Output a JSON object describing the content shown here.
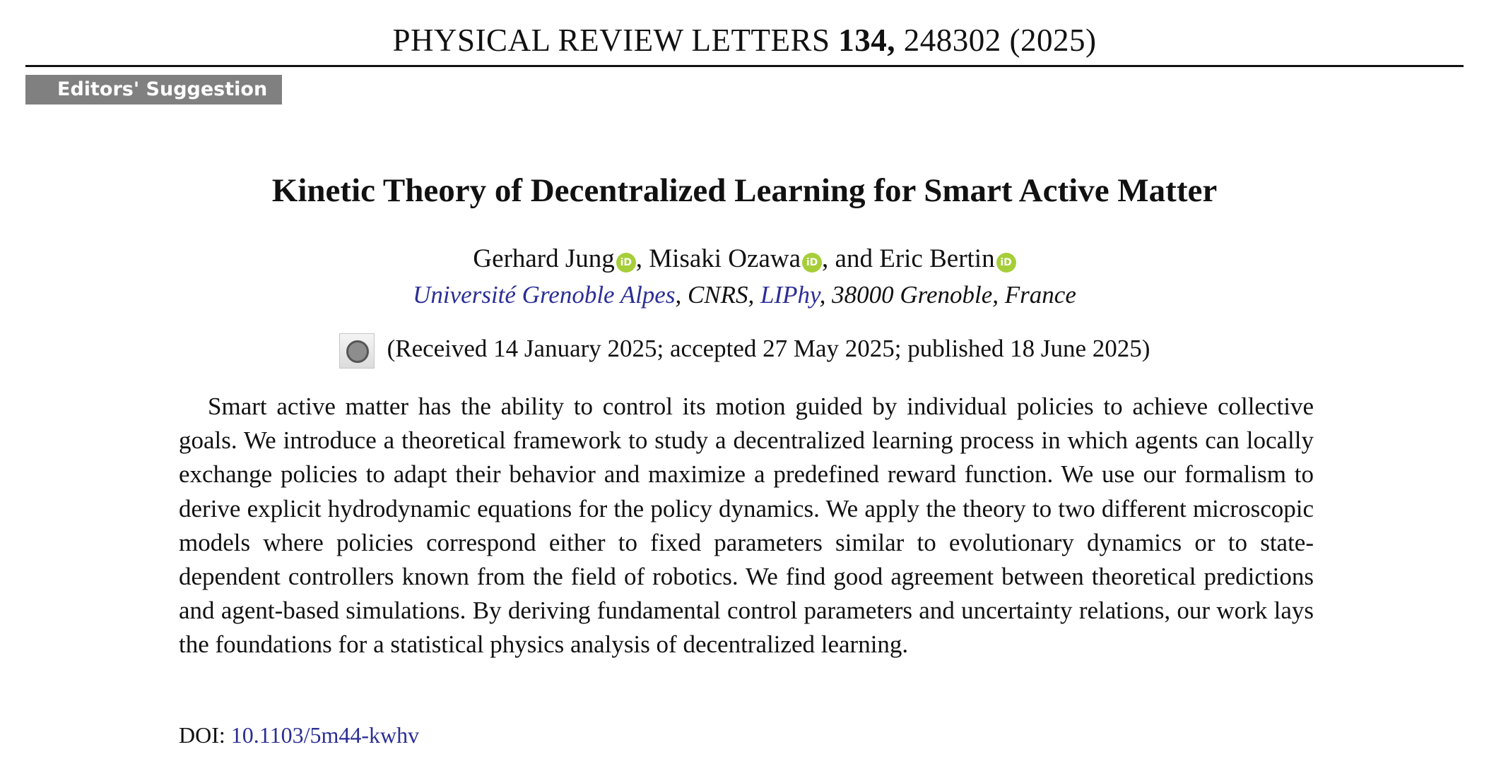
{
  "journal": {
    "name": "PHYSICAL REVIEW LETTERS",
    "volume": "134,",
    "article": "248302 (2025)"
  },
  "badge": "Editors' Suggestion",
  "title": "Kinetic Theory of Decentralized Learning for Smart Active Matter",
  "authors": [
    {
      "name": "Gerhard Jung",
      "orcid_icon": "orcid-icon",
      "sep": ","
    },
    {
      "name": "Misaki Ozawa",
      "orcid_icon": "orcid-icon",
      "sep": ", and"
    },
    {
      "name": "Eric Bertin",
      "orcid_icon": "orcid-icon",
      "sep": ""
    }
  ],
  "orcid_label": "iD",
  "orcid_color": "#a6ce39",
  "link_color": "#2b2e96",
  "affiliation": {
    "university": "Université Grenoble Alpes",
    "cnrs": ", CNRS, ",
    "lab": "LIPhy",
    "rest": ", 38000 Grenoble, France"
  },
  "check_updates_icon": "check-for-updates-icon",
  "dates": "(Received 14 January 2025; accepted 27 May 2025; published 18 June 2025)",
  "abstract": "Smart active matter has the ability to control its motion guided by individual policies to achieve collective goals. We introduce a theoretical framework to study a decentralized learning process in which agents can locally exchange policies to adapt their behavior and maximize a predefined reward function. We use our formalism to derive explicit hydrodynamic equations for the policy dynamics. We apply the theory to two different microscopic models where policies correspond either to fixed parameters similar to evolutionary dynamics or to state-dependent controllers known from the field of robotics. We find good agreement between theoretical predictions and agent-based simulations. By deriving fundamental control parameters and uncertainty relations, our work lays the foundations for a statistical physics analysis of decentralized learning.",
  "doi": {
    "label": "DOI:",
    "value": "10.1103/5m44-kwhv"
  }
}
